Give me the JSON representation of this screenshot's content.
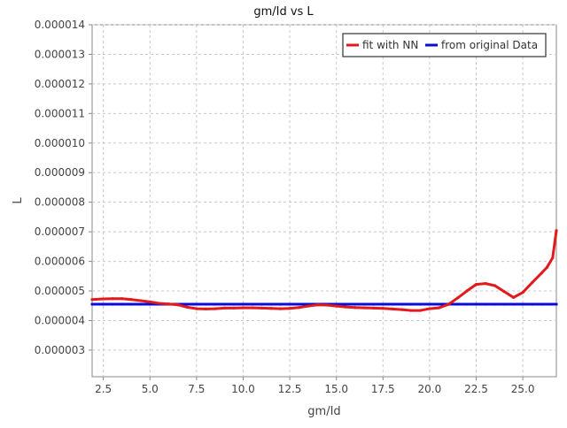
{
  "colors": {
    "fit": "#e31a1c",
    "original": "#0b0bd9",
    "grid": "#c8c8c8",
    "axis": "#888888",
    "plot_background": "#ffffff",
    "legend_border": "#333333"
  },
  "chart_data": {
    "type": "line",
    "title": "gm/Id vs L",
    "xlabel": "gm/Id",
    "ylabel": "L",
    "xlim": [
      1.9,
      26.8
    ],
    "ylim": [
      2.1e-06,
      1.4e-05
    ],
    "x_ticks": [
      2.5,
      5.0,
      7.5,
      10.0,
      12.5,
      15.0,
      17.5,
      20.0,
      22.5,
      25.0
    ],
    "x_tick_labels": [
      "2.5",
      "5.0",
      "7.5",
      "10.0",
      "12.5",
      "15.0",
      "17.5",
      "20.0",
      "22.5",
      "25.0"
    ],
    "y_ticks": [
      3e-06,
      4e-06,
      5e-06,
      6e-06,
      7e-06,
      8e-06,
      9e-06,
      1e-05,
      1.1e-05,
      1.2e-05,
      1.3e-05,
      1.4e-05
    ],
    "y_tick_labels": [
      "0.000003",
      "0.000004",
      "0.000005",
      "0.000006",
      "0.000007",
      "0.000008",
      "0.000009",
      "0.000010",
      "0.000011",
      "0.000012",
      "0.000013",
      "0.000014"
    ],
    "grid": true,
    "legend": "top-right",
    "series": [
      {
        "name": "fit with NN",
        "color": "#e31a1c",
        "x": [
          1.9,
          2.5,
          3.0,
          3.5,
          4.0,
          4.5,
          5.0,
          5.5,
          6.0,
          6.5,
          7.0,
          7.5,
          8.0,
          8.5,
          9.0,
          9.5,
          10.0,
          10.5,
          11.0,
          11.5,
          12.0,
          12.5,
          13.0,
          13.5,
          14.0,
          14.5,
          15.0,
          15.5,
          16.0,
          16.5,
          17.0,
          17.5,
          18.0,
          18.5,
          19.0,
          19.5,
          20.0,
          20.5,
          21.0,
          21.5,
          22.0,
          22.5,
          23.0,
          23.5,
          24.0,
          24.5,
          25.0,
          25.5,
          26.0,
          26.3,
          26.6,
          26.8
        ],
        "y": [
          4.71e-06,
          4.73e-06,
          4.74e-06,
          4.74e-06,
          4.71e-06,
          4.67e-06,
          4.63e-06,
          4.58e-06,
          4.56e-06,
          4.53e-06,
          4.45e-06,
          4.4e-06,
          4.39e-06,
          4.4e-06,
          4.42e-06,
          4.42e-06,
          4.43e-06,
          4.43e-06,
          4.42e-06,
          4.41e-06,
          4.4e-06,
          4.41e-06,
          4.44e-06,
          4.49e-06,
          4.53e-06,
          4.52e-06,
          4.49e-06,
          4.46e-06,
          4.44e-06,
          4.43e-06,
          4.42e-06,
          4.41e-06,
          4.39e-06,
          4.37e-06,
          4.34e-06,
          4.34e-06,
          4.4e-06,
          4.43e-06,
          4.54e-06,
          4.76e-06,
          5e-06,
          5.22e-06,
          5.25e-06,
          5.18e-06,
          4.98e-06,
          4.78e-06,
          4.95e-06,
          5.28e-06,
          5.6e-06,
          5.8e-06,
          6.12e-06,
          7.04e-06
        ]
      },
      {
        "name": "from original Data",
        "color": "#0b0bd9",
        "x": [
          1.9,
          2.5,
          3.0,
          3.5,
          4.0,
          4.5,
          5.0,
          5.5,
          6.0,
          6.5,
          7.0,
          7.5,
          8.0,
          8.5,
          9.0,
          9.5,
          10.0,
          10.5,
          11.0,
          11.5,
          12.0,
          12.5,
          13.0,
          13.5,
          14.0,
          14.5,
          15.0,
          15.5,
          16.0,
          16.5,
          17.0,
          17.5,
          18.0,
          18.5,
          19.0,
          19.5,
          20.0,
          20.5,
          21.0,
          21.5,
          22.0,
          22.5,
          23.0,
          23.5,
          24.0,
          24.5,
          25.0,
          25.5,
          26.0,
          26.5,
          26.8
        ],
        "y": [
          4.55e-06,
          4.55e-06,
          4.55e-06,
          4.55e-06,
          4.55e-06,
          4.55e-06,
          4.55e-06,
          4.55e-06,
          4.55e-06,
          4.55e-06,
          4.55e-06,
          4.55e-06,
          4.55e-06,
          4.55e-06,
          4.55e-06,
          4.55e-06,
          4.55e-06,
          4.55e-06,
          4.55e-06,
          4.55e-06,
          4.55e-06,
          4.55e-06,
          4.55e-06,
          4.55e-06,
          4.55e-06,
          4.55e-06,
          4.55e-06,
          4.55e-06,
          4.55e-06,
          4.55e-06,
          4.55e-06,
          4.55e-06,
          4.55e-06,
          4.55e-06,
          4.55e-06,
          4.55e-06,
          4.55e-06,
          4.55e-06,
          4.55e-06,
          4.55e-06,
          4.55e-06,
          4.55e-06,
          4.55e-06,
          4.55e-06,
          4.55e-06,
          4.55e-06,
          4.55e-06,
          4.55e-06,
          4.55e-06,
          4.55e-06,
          4.55e-06
        ]
      }
    ]
  }
}
